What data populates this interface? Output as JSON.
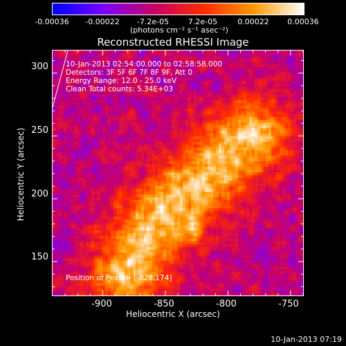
{
  "colorbar": {
    "ticks": [
      "-0.00036",
      "-0.00022",
      "-7.2e-05",
      "7.2e-05",
      "0.00022",
      "0.00036"
    ],
    "tick_values": [
      -0.00036,
      -0.00022,
      -7.2e-05,
      7.2e-05,
      0.00022,
      0.00036
    ],
    "units": "(photons cm⁻² s⁻¹ asec⁻²)",
    "range": [
      -0.00036,
      0.00036
    ],
    "colormap": [
      "#0000ff",
      "#7a00ff",
      "#c8006a",
      "#ff2a00",
      "#ff9a00",
      "#ffffff"
    ]
  },
  "plot": {
    "title": "Reconstructed RHESSI Image",
    "info_lines": [
      "10-Jan-2013 02:54:00.000 to 02:58:58.000",
      "Detectors: 3F 5F 6F 7F 8F 9F, Att 0",
      "Energy Range: 12.0 - 25.0 keV",
      "Clean     Total counts: 5.34E+03"
    ],
    "peak_label": "Position of Peak = [-828,174]"
  },
  "footer": {
    "date": "10-Jan-2013 07:19"
  },
  "chart_data": {
    "type": "heatmap",
    "title": "Reconstructed RHESSI Image",
    "xlabel": "Heliocentric X (arcsec)",
    "ylabel": "Heliocentric Y (arcsec)",
    "x_tick_labels": [
      "-900",
      "-850",
      "-800",
      "-750"
    ],
    "x_ticks": [
      -900,
      -850,
      -800,
      -750
    ],
    "y_tick_labels": [
      "150",
      "200",
      "250",
      "300"
    ],
    "y_ticks": [
      150,
      200,
      250,
      300
    ],
    "xlim": [
      -940,
      -740
    ],
    "ylim": [
      123,
      318
    ],
    "peak": {
      "x": -828,
      "y": 174
    },
    "color_scale": [
      -0.00036,
      0.00036
    ],
    "emission_band": {
      "description": "bright diagonal ridge from lower-left to upper-right",
      "points": [
        [
          -880,
          140
        ],
        [
          -860,
          180
        ],
        [
          -840,
          200
        ],
        [
          -820,
          215
        ],
        [
          -800,
          235
        ],
        [
          -780,
          250
        ]
      ]
    }
  }
}
